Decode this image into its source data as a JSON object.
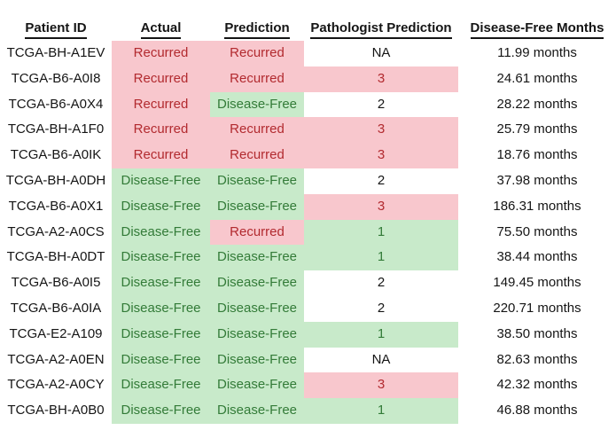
{
  "chart_data": {
    "type": "table",
    "columns": [
      "Patient ID",
      "Actual",
      "Prediction",
      "Pathologist Prediction",
      "Disease-Free Months"
    ],
    "rows": [
      [
        "TCGA-BH-A1EV",
        "Recurred",
        "Recurred",
        "NA",
        "11.99 months"
      ],
      [
        "TCGA-B6-A0I8",
        "Recurred",
        "Recurred",
        "3",
        "24.61 months"
      ],
      [
        "TCGA-B6-A0X4",
        "Recurred",
        "Disease-Free",
        "2",
        "28.22 months"
      ],
      [
        "TCGA-BH-A1F0",
        "Recurred",
        "Recurred",
        "3",
        "25.79 months"
      ],
      [
        "TCGA-B6-A0IK",
        "Recurred",
        "Recurred",
        "3",
        "18.76 months"
      ],
      [
        "TCGA-BH-A0DH",
        "Disease-Free",
        "Disease-Free",
        "2",
        "37.98 months"
      ],
      [
        "TCGA-B6-A0X1",
        "Disease-Free",
        "Disease-Free",
        "3",
        "186.31 months"
      ],
      [
        "TCGA-A2-A0CS",
        "Disease-Free",
        "Recurred",
        "1",
        "75.50 months"
      ],
      [
        "TCGA-BH-A0DT",
        "Disease-Free",
        "Disease-Free",
        "1",
        "38.44 months"
      ],
      [
        "TCGA-B6-A0I5",
        "Disease-Free",
        "Disease-Free",
        "2",
        "149.45 months"
      ],
      [
        "TCGA-B6-A0IA",
        "Disease-Free",
        "Disease-Free",
        "2",
        "220.71 months"
      ],
      [
        "TCGA-E2-A109",
        "Disease-Free",
        "Disease-Free",
        "1",
        "38.50 months"
      ],
      [
        "TCGA-A2-A0EN",
        "Disease-Free",
        "Disease-Free",
        "NA",
        "82.63 months"
      ],
      [
        "TCGA-A2-A0CY",
        "Disease-Free",
        "Disease-Free",
        "3",
        "42.32 months"
      ],
      [
        "TCGA-BH-A0B0",
        "Disease-Free",
        "Disease-Free",
        "1",
        "46.88 months"
      ]
    ]
  },
  "cell_styles": {
    "styled_columns": [
      1,
      2,
      3
    ],
    "by_value": {
      "Recurred": "recurred",
      "Disease-Free": "disease-free",
      "3": "recurred",
      "2": "neutral",
      "1": "disease-free",
      "NA": "neutral"
    }
  },
  "cell_names": [
    "patient-id-cell",
    "actual-cell",
    "prediction-cell",
    "pathologist-prediction-cell",
    "disease-free-months-cell"
  ],
  "colors": {
    "recurred_bg": "#f8c7cd",
    "recurred_text": "#b22a2f",
    "disease_free_bg": "#c8eaca",
    "disease_free_text": "#337b38",
    "neutral_text": "#151515",
    "page_bg": "#ffffff"
  }
}
